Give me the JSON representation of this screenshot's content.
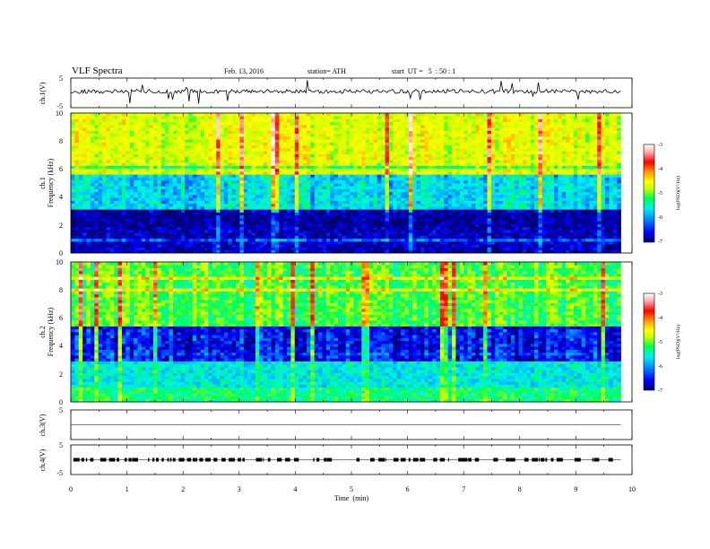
{
  "header": {
    "title": "VLF Spectra",
    "date": "Feb. 13, 2016",
    "station": "station= ATH",
    "start": "start  UT =   5  : 50 : 1"
  },
  "chart_data": [
    {
      "type": "line",
      "ylabel": "ch.1(V)",
      "ylim": [
        -5,
        5
      ],
      "yticks": [
        "5",
        "-5"
      ],
      "baseline_level": 0.5,
      "description_of_values": "noisy waveform near +0.5 V with sporadic negative spikes"
    },
    {
      "type": "heatmap",
      "ylabel": "ch.1",
      "ylabel2": "Frequency  (kHz)",
      "ylim": [
        0,
        10
      ],
      "yticks": [
        "0",
        "2",
        "4",
        "6",
        "8",
        "10"
      ],
      "colorbar": {
        "label": "log(PSD)(V²/Hz)",
        "range": [
          -7,
          -3
        ],
        "ticks": [
          "-3",
          "-4",
          "-5",
          "-6",
          "-7"
        ]
      },
      "bands_khz": [
        {
          "from": 0,
          "to": 1.8,
          "level": -6.8
        },
        {
          "from": 1.8,
          "to": 3.2,
          "level": -6.9
        },
        {
          "from": 3.2,
          "to": 5.6,
          "level": -5.9
        },
        {
          "from": 5.6,
          "to": 10,
          "level": -4.8
        }
      ]
    },
    {
      "type": "heatmap",
      "ylabel": "ch.2",
      "ylabel2": "Frequency  (kHz)",
      "ylim": [
        0,
        10
      ],
      "yticks": [
        "0",
        "2",
        "4",
        "6",
        "8",
        "10"
      ],
      "colorbar": {
        "label": "log(PSD)(V²/Hz)",
        "range": [
          -7,
          -3
        ],
        "ticks": [
          "-3",
          "-4",
          "-5",
          "-6",
          "-7"
        ]
      },
      "bands_khz": [
        {
          "from": 0,
          "to": 1.0,
          "level": -5.5
        },
        {
          "from": 1.0,
          "to": 3.0,
          "level": -5.8
        },
        {
          "from": 3.0,
          "to": 5.5,
          "level": -6.6
        },
        {
          "from": 5.5,
          "to": 10,
          "level": -5.3
        }
      ]
    },
    {
      "type": "line",
      "ylabel": "ch.3(V)",
      "ylim": [
        -5,
        5
      ],
      "yticks": [
        "5",
        ""
      ],
      "baseline_level": 0
    },
    {
      "type": "line",
      "ylabel": "ch.4(V)",
      "ylim": [
        -5,
        5
      ],
      "yticks": [
        "5",
        "-5"
      ],
      "baseline_level": 0,
      "description_of_values": "pulse train near 0 V"
    }
  ],
  "xaxis": {
    "label": "Time  (min)",
    "range": [
      0,
      10
    ],
    "ticks": [
      "0",
      "1",
      "2",
      "3",
      "4",
      "5",
      "6",
      "7",
      "8",
      "9",
      "10"
    ],
    "data_end": 9.8
  },
  "colors": {
    "scale": [
      "#00006e",
      "#0000ff",
      "#0096ff",
      "#00f0f0",
      "#00ff50",
      "#c8ff00",
      "#ffff00",
      "#ff9600",
      "#ff0000",
      "#ffaaaa",
      "#ffffff"
    ]
  }
}
